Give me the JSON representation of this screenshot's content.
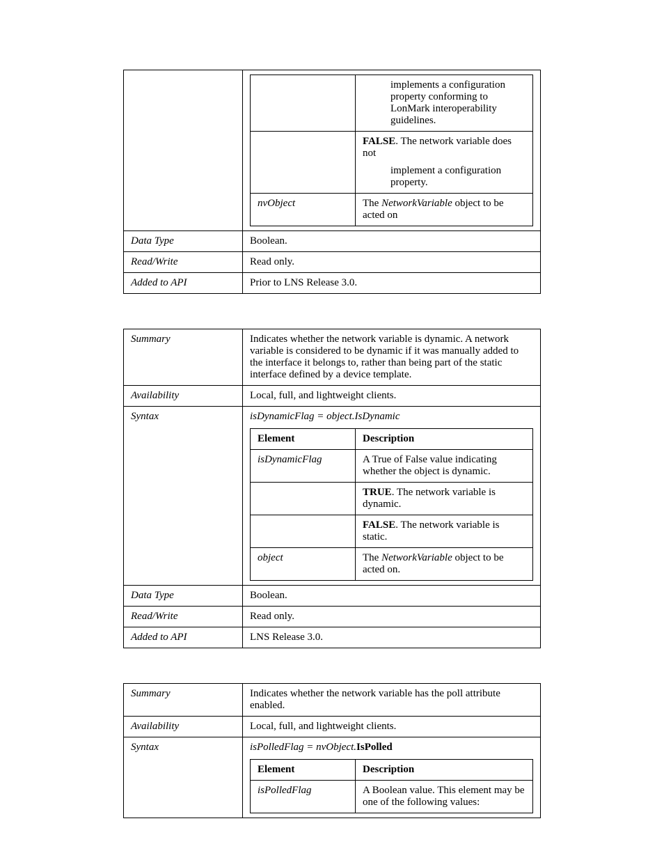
{
  "table1": {
    "rows": {
      "syntax": {
        "truePrefix": "",
        "trueIndent": "implements a configuration property conforming to LonMark interoperability guidelines.",
        "falsePrefix": "FALSE",
        "falseRest": ". The network variable does not",
        "falseIndent": "implement a configuration property.",
        "elem2": "nvObject",
        "elem2descA": "The ",
        "elem2descItalic": "NetworkVariable",
        "elem2descB": " object to be acted on"
      },
      "dataType": {
        "label": "Data Type",
        "value": "Boolean."
      },
      "readWrite": {
        "label": "Read/Write",
        "value": "Read only."
      },
      "addedToAPI": {
        "label": "Added to API",
        "value": "Prior to LNS Release 3.0."
      }
    }
  },
  "table2": {
    "summary": {
      "label": "Summary",
      "value": "Indicates whether the network variable is dynamic.  A network variable is considered to be dynamic if it was manually added to the interface it belongs to, rather than being part of the static interface defined by a device template."
    },
    "availability": {
      "label": "Availability",
      "value": "Local, full, and lightweight clients."
    },
    "syntax": {
      "label": "Syntax",
      "line": "isDynamicFlag = object.IsDynamic",
      "elemHeader": "Element",
      "descHeader": "Description",
      "elem1": "isDynamicFlag",
      "elem1desc1": "A True of False value indicating whether the object is dynamic.",
      "truePrefix": "TRUE",
      "trueRest": ".   The network variable is dynamic.",
      "falsePrefix": "FALSE",
      "falseRest": ".  The network variable is static.",
      "elem2": "object",
      "elem2descA": "The ",
      "elem2descItalic": "NetworkVariable",
      "elem2descB": " object to be acted on."
    },
    "dataType": {
      "label": "Data Type",
      "value": "Boolean."
    },
    "readWrite": {
      "label": "Read/Write",
      "value": "Read only."
    },
    "addedToAPI": {
      "label": "Added to API",
      "value": "LNS Release 3.0."
    }
  },
  "table3": {
    "summary": {
      "label": "Summary",
      "value": "Indicates whether the network variable has the poll attribute enabled."
    },
    "availability": {
      "label": "Availability",
      "value": "Local, full, and lightweight clients."
    },
    "syntax": {
      "label": "Syntax",
      "lineItalic": "isPolledFlag = nvObject.",
      "lineBold": "IsPolled",
      "elemHeader": "Element",
      "descHeader": "Description",
      "elem1": "isPolledFlag",
      "elem1desc1": "A Boolean value. This element may be one of the following values:"
    }
  }
}
